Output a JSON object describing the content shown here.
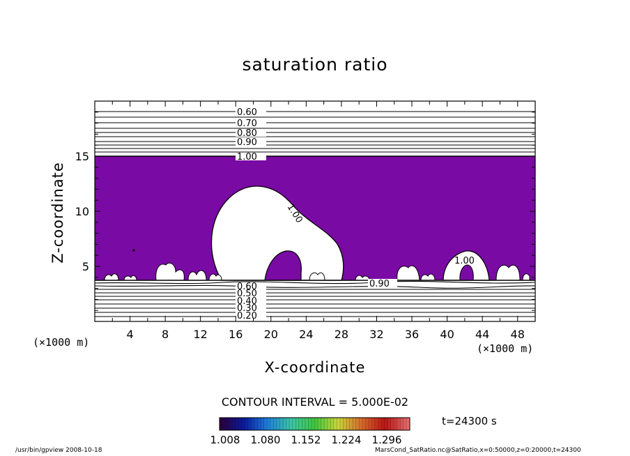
{
  "chart_data": {
    "type": "contour",
    "title": "saturation ratio",
    "xlabel": "X-coordinate",
    "ylabel": "Z-coordinate",
    "x_unit": "(×1000 m)",
    "y_unit": "(×1000 m)",
    "xlim": [
      0,
      50
    ],
    "ylim": [
      0,
      20
    ],
    "x_ticks": [
      4,
      8,
      12,
      16,
      20,
      24,
      28,
      32,
      36,
      40,
      44,
      48
    ],
    "y_ticks": [
      5,
      10,
      15
    ],
    "contour_labels_upper": [
      "0.60",
      "0.70",
      "0.80",
      "0.90",
      "1.00"
    ],
    "contour_labels_lower": [
      "0.60",
      "0.50",
      "0.40",
      "0.30",
      "0.20"
    ],
    "contour_labels_inline": [
      "1.00",
      "1.00",
      "0.90"
    ],
    "supersaturated_layer": {
      "z_bottom": 3.8,
      "z_top": 15.0,
      "fill_color": "#7a0aa4"
    },
    "contour_interval_text": "CONTOUR INTERVAL = 5.000E-02",
    "colorbar": {
      "tick_labels": [
        "1.008",
        "1.080",
        "1.152",
        "1.224",
        "1.296"
      ],
      "range": [
        1.008,
        1.296
      ],
      "colors": [
        "#2a0040",
        "#0a1a9e",
        "#1e7fd8",
        "#3bc4a4",
        "#3fc43f",
        "#c8d43a",
        "#d46a2a",
        "#b81414",
        "#e46a6a"
      ]
    },
    "time_label": "t=24300 s"
  },
  "footer": {
    "left": "/usr/bin/gpview   2008-10-18",
    "right": "MarsCond_SatRatio.nc@SatRatio,x=0:50000,z=0:20000,t=24300"
  }
}
